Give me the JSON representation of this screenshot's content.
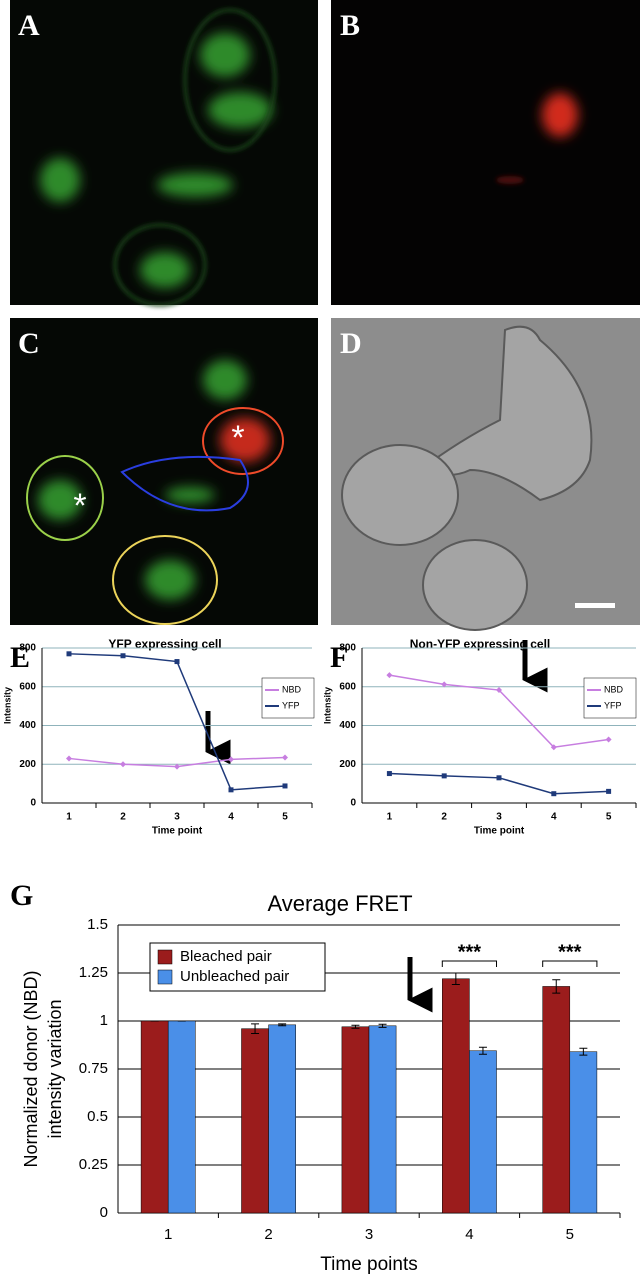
{
  "panel_labels": [
    "A",
    "B",
    "C",
    "D",
    "E",
    "F",
    "G"
  ],
  "chart_data": [
    {
      "type": "line",
      "title": "YFP expressing cell",
      "xlabel": "Time point",
      "ylabel": "Intensity",
      "categories": [
        "1",
        "2",
        "3",
        "4",
        "5"
      ],
      "series": [
        {
          "name": "NBD",
          "color": "#c77ee0",
          "values": [
            230,
            200,
            188,
            225,
            235
          ]
        },
        {
          "name": "YFP",
          "color": "#1f3a7a",
          "values": [
            770,
            760,
            730,
            68,
            88
          ]
        }
      ],
      "ylim": [
        0,
        800
      ],
      "yticks": [
        0,
        200,
        400,
        600,
        800
      ],
      "grid": true,
      "legend": "upper right"
    },
    {
      "type": "line",
      "title": "Non-YFP expressing cell",
      "xlabel": "Time point",
      "ylabel": "Intensity",
      "categories": [
        "1",
        "2",
        "3",
        "4",
        "5"
      ],
      "series": [
        {
          "name": "NBD",
          "color": "#c77ee0",
          "values": [
            660,
            612,
            583,
            288,
            328
          ]
        },
        {
          "name": "YFP",
          "color": "#1f3a7a",
          "values": [
            152,
            140,
            130,
            48,
            60
          ]
        }
      ],
      "ylim": [
        0,
        800
      ],
      "yticks": [
        0,
        200,
        400,
        600,
        800
      ],
      "grid": true,
      "legend": "upper right"
    },
    {
      "type": "bar",
      "title": "Average FRET",
      "xlabel": "Time points",
      "ylabel": [
        "Normalized donor (NBD)",
        "intensity variation"
      ],
      "categories": [
        "1",
        "2",
        "3",
        "4",
        "5"
      ],
      "series": [
        {
          "name": "Bleached pair",
          "color": "#9b1c1c",
          "values": [
            1,
            0.96,
            0.97,
            1.22,
            1.18
          ],
          "errors": [
            0,
            0.025,
            0.008,
            0.03,
            0.035
          ]
        },
        {
          "name": "Unbleached pair",
          "color": "#4a8fe8",
          "values": [
            1,
            0.98,
            0.975,
            0.845,
            0.84
          ],
          "errors": [
            0,
            0.005,
            0.008,
            0.018,
            0.018
          ]
        }
      ],
      "ylim": [
        0,
        1.5
      ],
      "yticks": [
        0,
        0.25,
        0.5,
        0.75,
        1,
        1.25,
        1.5
      ],
      "grid": true,
      "legend": "upper left",
      "annotations": [
        "***",
        "***"
      ]
    }
  ]
}
